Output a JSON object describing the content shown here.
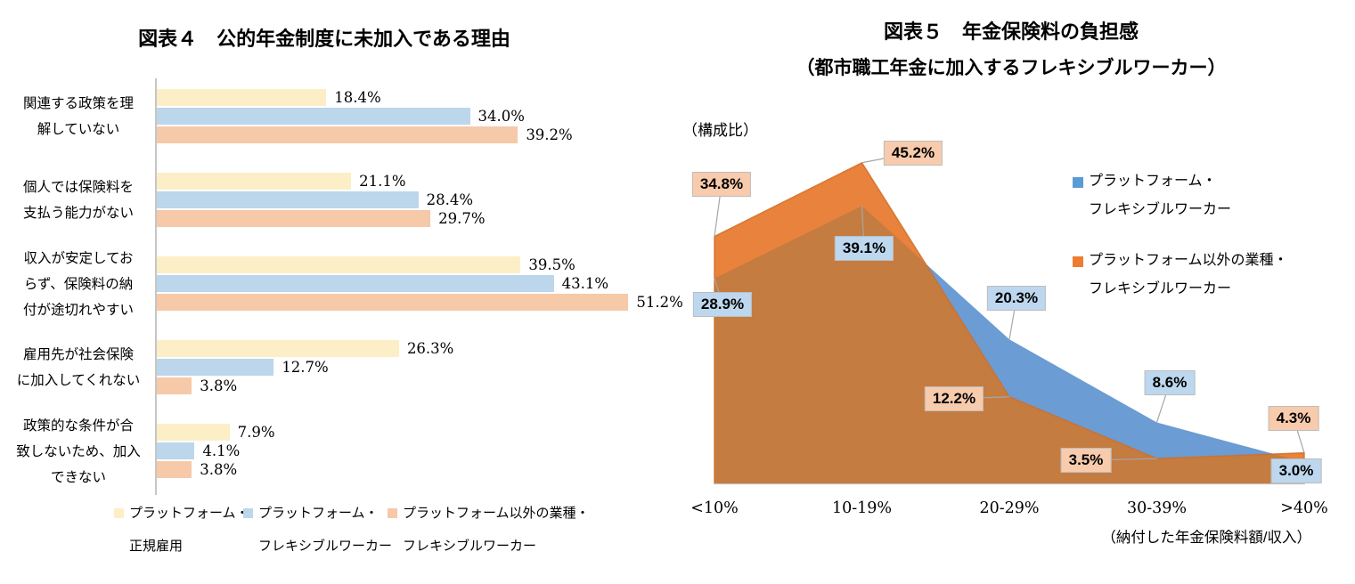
{
  "chart_data": [
    {
      "id": "figure4",
      "type": "bar",
      "orientation": "horizontal",
      "title": "図表４　公的年金制度に未加入である理由",
      "value_suffix": "%",
      "categories": [
        [
          "関連する政策を理",
          "解していない"
        ],
        [
          "個人では保険料を",
          "支払う能力がない"
        ],
        [
          "収入が安定してお",
          "らず、保険料の納",
          "付が途切れやすい"
        ],
        [
          "雇用先が社会保険",
          "に加入してくれない"
        ],
        [
          "政策的な条件が合",
          "致しないため、加入",
          "できない"
        ]
      ],
      "series": [
        {
          "key": "platform-regular",
          "name_lines": [
            "プラットフォーム・",
            "正規雇用"
          ],
          "color": "#FCEEC6",
          "values": [
            18.4,
            21.1,
            39.5,
            26.3,
            7.9
          ]
        },
        {
          "key": "platform-flexible",
          "name_lines": [
            "プラットフォーム・",
            "フレキシブルワーカー"
          ],
          "color": "#BCD6EB",
          "values": [
            34.0,
            28.4,
            43.1,
            12.7,
            4.1
          ]
        },
        {
          "key": "non-platform-flexible",
          "name_lines": [
            "プラットフォーム以外の業種・",
            "フレキシブルワーカー"
          ],
          "color": "#F6C9A8",
          "values": [
            39.2,
            29.7,
            51.2,
            3.8,
            3.8
          ]
        }
      ],
      "xlim": [
        0,
        55
      ],
      "legend_position": "bottom",
      "grid": false
    },
    {
      "id": "figure5",
      "type": "area",
      "title_lines": [
        "図表５　年金保険料の負担感",
        "（都市職工年金に加入するフレキシブルワーカー）"
      ],
      "y_axis_note": "（構成比）",
      "x_axis_note": "（納付した年金保険料額/収入）",
      "categories": [
        "<10%",
        "10-19%",
        "20-29%",
        "30-39%",
        ">40%"
      ],
      "series": [
        {
          "key": "platform-flexible",
          "name_lines": [
            "プラットフォーム・",
            "フレキシブルワーカー"
          ],
          "color": "#5B9BD5",
          "fill": "#6B9CD3",
          "label_bg": "#BDD7EE",
          "values": [
            28.9,
            39.1,
            20.3,
            8.6,
            3.0
          ]
        },
        {
          "key": "non-platform-flexible",
          "name_lines": [
            "プラットフォーム以外の業種・",
            "フレキシブルワーカー"
          ],
          "color": "#ED7D31",
          "fill": "#E8823C",
          "edge": "#D06F28",
          "label_bg": "#F8CBAD",
          "values": [
            34.8,
            45.2,
            12.2,
            3.5,
            4.3
          ]
        }
      ],
      "overlap_fill": "#C47C41",
      "axis_color": "#BFBFBF",
      "leader_color": "#A6A6A6",
      "ylim": [
        0,
        50
      ],
      "legend_position": "right",
      "grid": false
    }
  ]
}
